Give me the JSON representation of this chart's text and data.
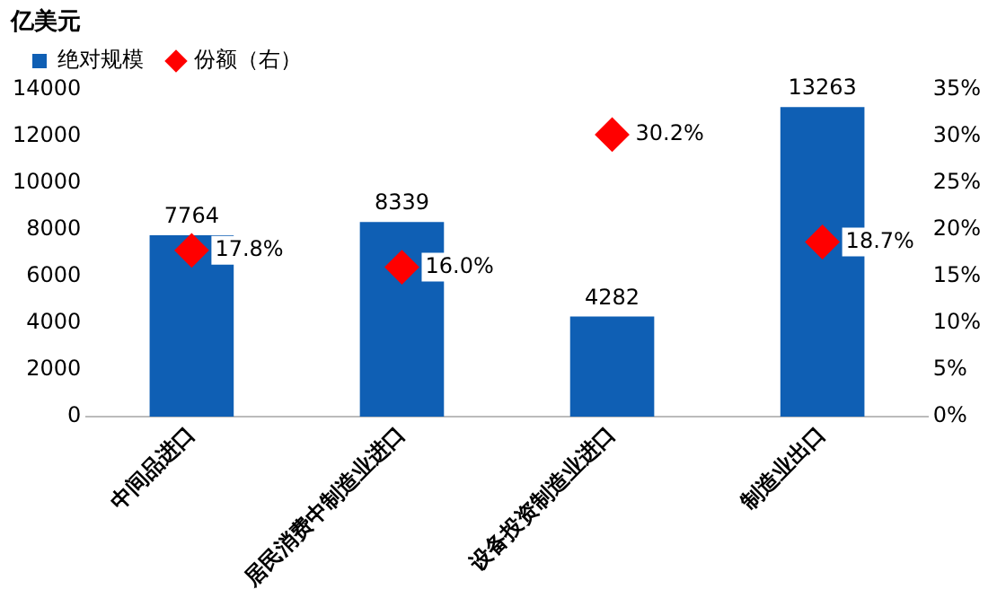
{
  "chart_data": {
    "type": "bar",
    "ylabel": "亿美元",
    "categories": [
      "中间品进口",
      "居民消费中制造业进口",
      "设备投资制造业进口",
      "制造业出口"
    ],
    "series": [
      {
        "name": "绝对规模",
        "color": "#0f5fb4",
        "values": [
          7764,
          8339,
          4282,
          13263
        ],
        "value_labels": [
          "7764",
          "8339",
          "4282",
          "13263"
        ]
      },
      {
        "name": "份额（右）",
        "type": "scatter",
        "axis": "y2",
        "marker": "diamond",
        "color": "#ff0000",
        "x": [
          "中间品进口",
          "居民消费中制造业进口",
          "设备投资制造业进口",
          "制造业出口"
        ],
        "values": [
          17.8,
          16.0,
          30.2,
          18.7
        ],
        "value_labels": [
          "17.8%",
          "16.0%",
          "30.2%",
          "18.7%"
        ]
      }
    ],
    "ylim": [
      0,
      14000
    ],
    "yticks": [
      0,
      2000,
      4000,
      6000,
      8000,
      10000,
      12000,
      14000
    ],
    "y2lim": [
      0,
      35
    ],
    "y2ticks": [
      {
        "value": 0,
        "label": "0%"
      },
      {
        "value": 5,
        "label": "5%"
      },
      {
        "value": 10,
        "label": "10%"
      },
      {
        "value": 15,
        "label": "15%"
      },
      {
        "value": 20,
        "label": "20%"
      },
      {
        "value": 25,
        "label": "25%"
      },
      {
        "value": 30,
        "label": "30%"
      },
      {
        "value": 35,
        "label": "35%"
      }
    ],
    "grid": false,
    "legend": "top left"
  }
}
